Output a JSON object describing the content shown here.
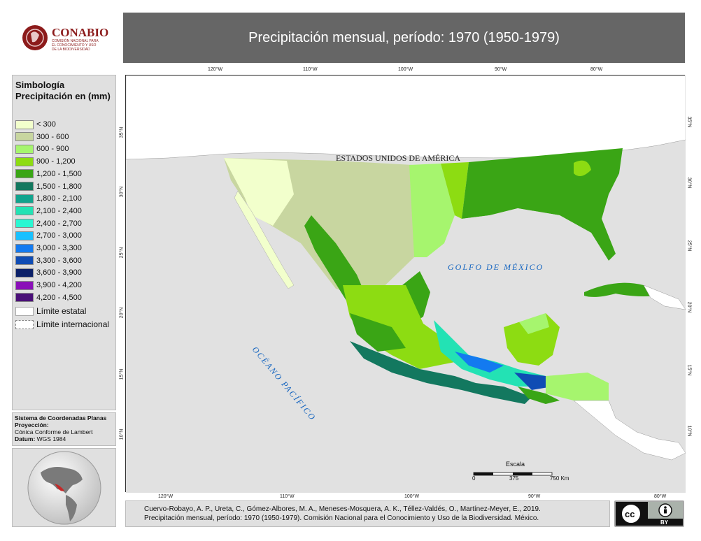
{
  "logo": {
    "name": "CONABIO",
    "sub1": "COMISIÓN NACIONAL PARA",
    "sub2": "EL CONOCIMIENTO Y USO",
    "sub3": "DE LA BIODIVERSIDAD"
  },
  "title": "Precipitación mensual, período: 1970 (1950-1979)",
  "legend": {
    "heading": "Simbología Precipitación en (mm)",
    "items": [
      {
        "label": "< 300",
        "color": "#f2ffcc"
      },
      {
        "label": "300 - 600",
        "color": "#c8d6a0"
      },
      {
        "label": "600 - 900",
        "color": "#a6f56e"
      },
      {
        "label": "900 - 1,200",
        "color": "#8ddc12"
      },
      {
        "label": "1,200 - 1,500",
        "color": "#3aa515"
      },
      {
        "label": "1,500 - 1,800",
        "color": "#13785f"
      },
      {
        "label": "1,800 - 2,100",
        "color": "#11a38d"
      },
      {
        "label": "2,100 - 2,400",
        "color": "#23e2b4"
      },
      {
        "label": "2,400 - 2,700",
        "color": "#2af7d2"
      },
      {
        "label": "2,700 - 3,000",
        "color": "#18c0ff"
      },
      {
        "label": "3,000 - 3,300",
        "color": "#137af0"
      },
      {
        "label": "3,300 - 3,600",
        "color": "#0f4cb4"
      },
      {
        "label": "3,600 - 3,900",
        "color": "#0b2068"
      },
      {
        "label": "3,900 - 4,200",
        "color": "#8a0fb8"
      },
      {
        "label": "4,200 - 4,500",
        "color": "#4a0f78"
      }
    ],
    "state_limit": "Límite estatal",
    "intl_limit": "Límite internacional"
  },
  "coords": {
    "system": "Sistema de Coordenadas Planas",
    "projection_label": "Proyección:",
    "projection": "Cónica Conforme de Lambert",
    "datum_label": "Datum:",
    "datum": "WGS 1984"
  },
  "map": {
    "top_ticks": [
      "120°W",
      "110°W",
      "100°W",
      "90°W",
      "80°W"
    ],
    "bottom_ticks": [
      "120°W",
      "110°W",
      "100°W",
      "90°W",
      "80°W"
    ],
    "left_ticks": [
      "35°N",
      "30°N",
      "25°N",
      "20°N",
      "15°N",
      "10°N"
    ],
    "right_ticks": [
      "35°N",
      "30°N",
      "25°N",
      "20°N",
      "15°N",
      "10°N"
    ],
    "usa_label": "ESTADOS UNIDOS DE AMÉRICA",
    "gulf_label": "GOLFO DE MÉXICO",
    "pacific_label": "OCÉANO PACÍFICO",
    "scale_title": "Escala",
    "scale_ticks": [
      "0",
      "375",
      "750 Km"
    ]
  },
  "citation": {
    "line1": "Cuervo-Robayo, A. P., Ureta, C., Gómez-Albores, M. A., Meneses-Mosquera, A. K., Téllez-Valdés, O., Martínez-Meyer, E., 2019.",
    "line2": "Precipitación mensual, período: 1970 (1950-1979). Comisión Nacional para el Conocimiento y Uso de la Biodiversidad. México."
  },
  "license": {
    "badge": "cc",
    "by": "BY"
  }
}
